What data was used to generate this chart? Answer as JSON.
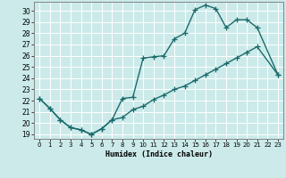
{
  "xlabel": "Humidex (Indice chaleur)",
  "bg_color": "#cceaea",
  "line_color": "#1a6b6b",
  "grid_color": "#ffffff",
  "xlim": [
    -0.5,
    23.5
  ],
  "ylim": [
    18.6,
    30.8
  ],
  "yticks": [
    19,
    20,
    21,
    22,
    23,
    24,
    25,
    26,
    27,
    28,
    29,
    30
  ],
  "xticks": [
    0,
    1,
    2,
    3,
    4,
    5,
    6,
    7,
    8,
    9,
    10,
    11,
    12,
    13,
    14,
    15,
    16,
    17,
    18,
    19,
    20,
    21,
    22,
    23
  ],
  "line1_x": [
    0,
    1,
    2,
    3,
    4,
    5,
    6,
    7,
    8,
    9,
    10,
    11,
    12,
    13,
    14,
    15,
    16,
    17,
    18,
    19,
    20,
    21,
    23
  ],
  "line1_y": [
    22.2,
    21.3,
    20.3,
    19.6,
    19.4,
    19.0,
    19.5,
    20.3,
    22.2,
    22.3,
    25.8,
    25.9,
    26.0,
    27.5,
    28.0,
    30.1,
    30.5,
    30.2,
    28.5,
    29.2,
    29.2,
    28.5,
    24.3
  ],
  "line2_x": [
    0,
    1,
    2,
    3,
    4,
    5,
    6,
    7,
    8,
    9,
    10,
    11,
    12,
    13,
    14,
    15,
    16,
    17,
    18,
    19,
    20,
    21,
    23
  ],
  "line2_y": [
    22.2,
    21.3,
    20.3,
    19.6,
    19.4,
    19.0,
    19.5,
    20.3,
    20.5,
    21.2,
    21.5,
    22.1,
    22.5,
    23.0,
    23.3,
    23.8,
    24.3,
    24.8,
    25.3,
    25.8,
    26.3,
    26.8,
    24.3
  ],
  "marker": "+",
  "markersize": 4,
  "linewidth": 1.0
}
